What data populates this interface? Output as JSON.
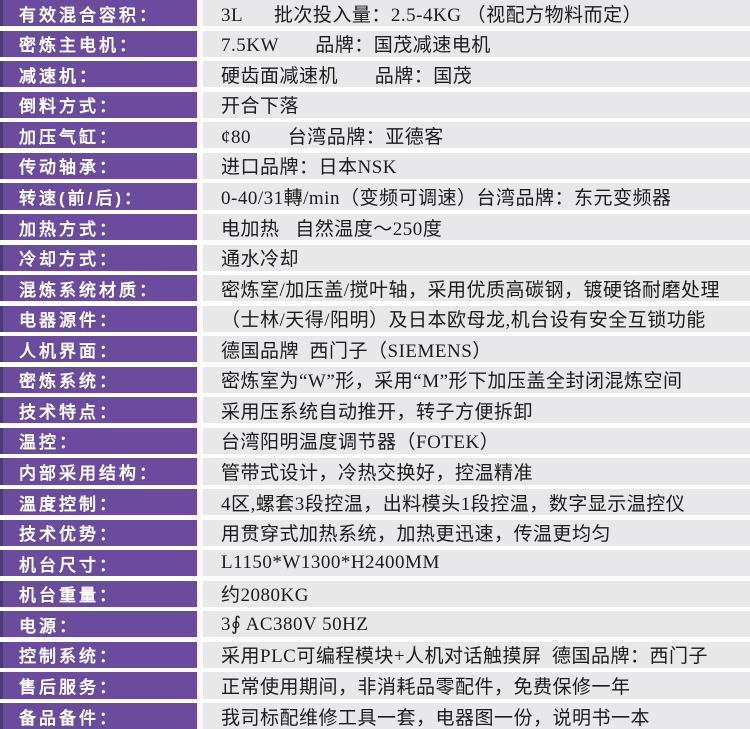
{
  "table": {
    "accent_color": "#6a4b9d",
    "accent_dark_edge": "#4f3879",
    "value_bg": "#e8e7e9",
    "label_text_color": "#ffffff",
    "value_text_color": "#1c1c1c",
    "rows": [
      {
        "label": "有效混合容积：",
        "value": "3L      批次投入量：2.5-4KG （视配方物料而定）"
      },
      {
        "label": "密炼主电机：",
        "value": "7.5KW       品牌：国茂减速电机"
      },
      {
        "label": "减速机：",
        "value": "硬齿面减速机       品牌：国茂"
      },
      {
        "label": "倒料方式：",
        "value": "开合下落"
      },
      {
        "label": "加压气缸：",
        "value": "¢80       台湾品牌：亚德客"
      },
      {
        "label": "传动轴承：",
        "value": "进口品牌：日本NSK"
      },
      {
        "label": "转速(前/后)：",
        "value": "0-40/31轉/min（变频可调速）台湾品牌：东元变频器"
      },
      {
        "label": "加热方式：",
        "value": "电加热   自然温度～250度"
      },
      {
        "label": "冷却方式：",
        "value": "通水冷却"
      },
      {
        "label": "混炼系统材质：",
        "value": "密炼室/加压盖/搅叶轴，采用优质高碳钢，镀硬铬耐磨处理"
      },
      {
        "label": "电器源件：",
        "value": "（士林/天得/阳明）及日本欧母龙,机台设有安全互锁功能"
      },
      {
        "label": "人机界面：",
        "value": "德国品牌  西门子（SIEMENS）"
      },
      {
        "label": "密炼系统：",
        "value": "密炼室为“W”形，采用“M”形下加压盖全封闭混炼空间"
      },
      {
        "label": "技术特点：",
        "value": "采用压系统自动推开，转子方便拆卸"
      },
      {
        "label": "温控：",
        "value": "台湾阳明温度调节器（FOTEK）"
      },
      {
        "label": "内部采用结构：",
        "value": "管带式设计，冷热交换好，控温精准"
      },
      {
        "label": "溫度控制：",
        "value": "4区,螺套3段控温，出料模头1段控温，数字显示温控仪"
      },
      {
        "label": "技术优势：",
        "value": "用贯穿式加热系统，加热更迅速，传温更均匀"
      },
      {
        "label": "机台尺寸：",
        "value": "L1150*W1300*H2400MM"
      },
      {
        "label": "机台重量：",
        "value": "约2080KG"
      },
      {
        "label": "电源：",
        "value": "3∮ AC380V 50HZ"
      },
      {
        "label": "控制系统：",
        "value": "采用PLC可编程模块+人机对话触摸屏  德国品牌：西门子"
      },
      {
        "label": "售后服务：",
        "value": "正常使用期间，非消耗品零配件，免费保修一年"
      },
      {
        "label": "备品备件：",
        "value": "我司标配维修工具一套，电器图一份，说明书一本"
      }
    ]
  }
}
